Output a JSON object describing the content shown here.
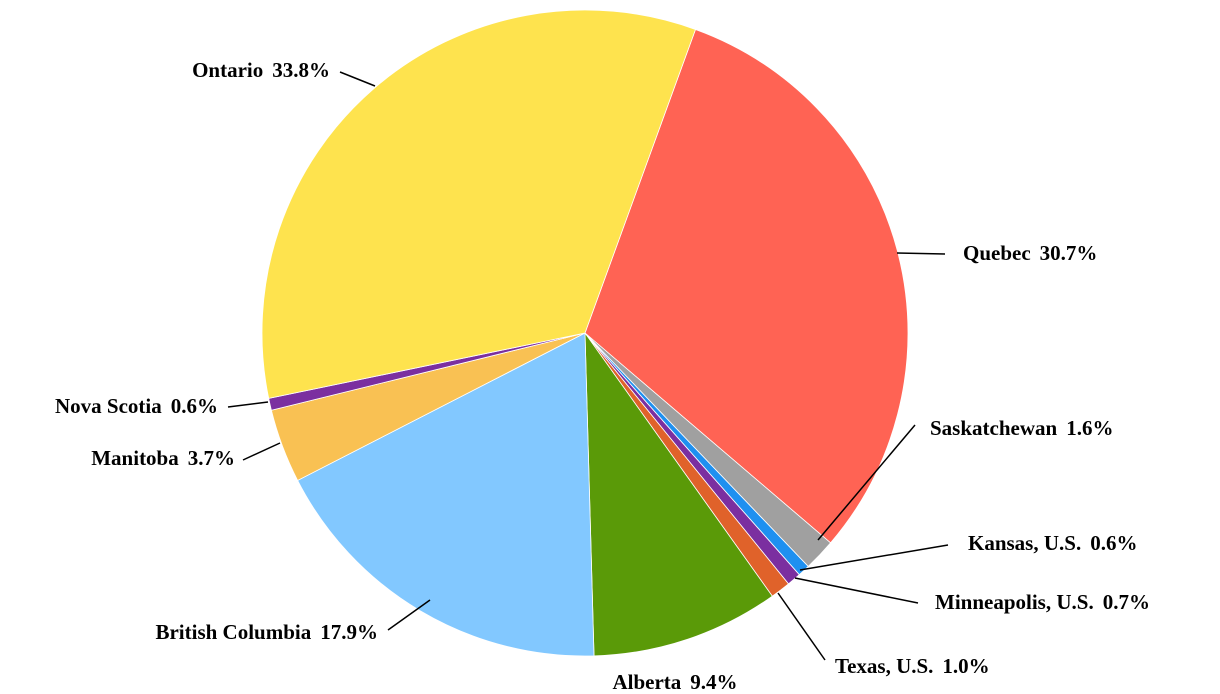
{
  "chart_data": {
    "type": "pie",
    "categories": [
      "Quebec",
      "Saskatchewan",
      "Kansas, U.S.",
      "Minneapolis, U.S.",
      "Texas, U.S.",
      "Alberta",
      "British Columbia",
      "Manitoba",
      "Nova Scotia",
      "Ontario"
    ],
    "values": [
      30.7,
      1.6,
      0.6,
      0.7,
      1.0,
      9.4,
      17.9,
      3.7,
      0.6,
      33.8
    ],
    "value_labels": [
      "30.7%",
      "1.6%",
      "0.6%",
      "0.7%",
      "1.0%",
      "9.4%",
      "17.9%",
      "3.7%",
      "0.6%",
      "33.8%"
    ],
    "colors": [
      "#ff6354",
      "#a0a0a0",
      "#1e90f0",
      "#7b2fa0",
      "#e0622a",
      "#5a9a08",
      "#82c8ff",
      "#f9c153",
      "#7b2fa0",
      "#fee34e"
    ]
  }
}
